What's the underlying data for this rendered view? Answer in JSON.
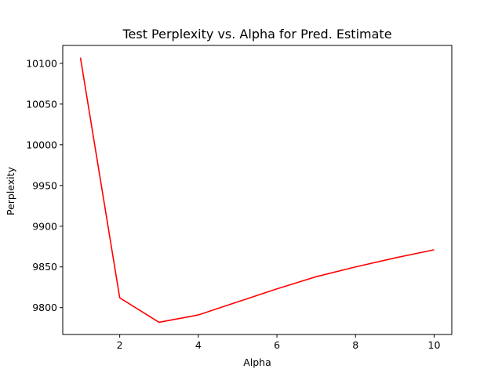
{
  "chart_data": {
    "type": "line",
    "title": "Test Perplexity vs. Alpha for Pred. Estimate",
    "xlabel": "Alpha",
    "ylabel": "Perplexity",
    "xlim": [
      0.55,
      10.45
    ],
    "ylim": [
      9767,
      10122
    ],
    "xticks": [
      2,
      4,
      6,
      8,
      10
    ],
    "yticks": [
      9800,
      9850,
      9900,
      9950,
      10000,
      10050,
      10100
    ],
    "grid": false,
    "legend": "none",
    "series": [
      {
        "color": "#ff0000",
        "x": [
          1,
          2,
          3,
          4,
          5,
          6,
          7,
          8,
          9,
          10
        ],
        "y": [
          10107,
          9812,
          9782,
          9791,
          9807,
          9823,
          9838,
          9850,
          9861,
          9871
        ]
      }
    ]
  }
}
